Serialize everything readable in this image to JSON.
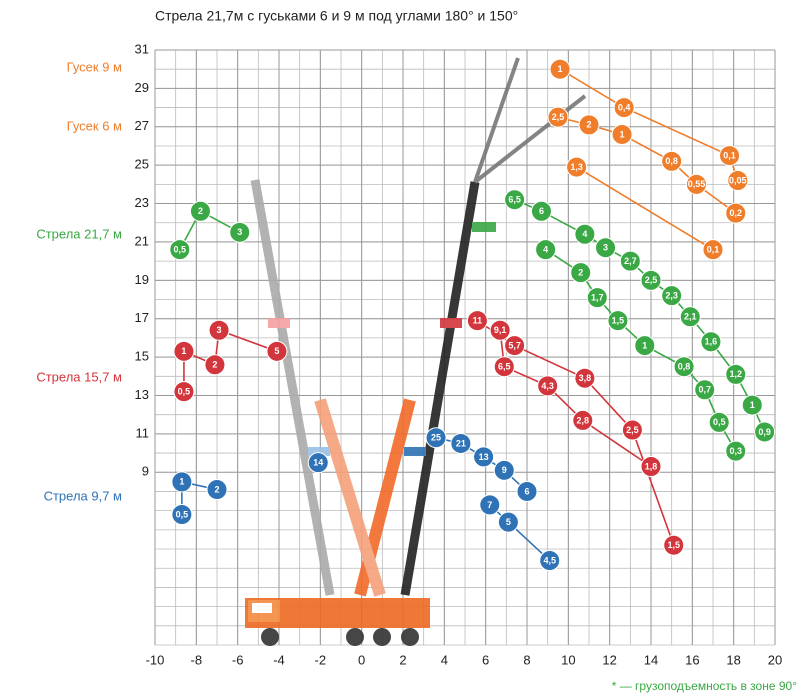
{
  "chart_data": {
    "type": "line",
    "title": "Стрела 21,7м с гуськами 6 и 9 м под углами 180° и 150°",
    "footnote": "* — грузоподъемность в зоне 90°",
    "xlim": [
      -10,
      20
    ],
    "ylim": [
      0,
      31
    ],
    "xticks": [
      -10,
      -8,
      -6,
      -4,
      -2,
      0,
      2,
      4,
      6,
      8,
      10,
      12,
      14,
      16,
      18,
      20
    ],
    "yticks": [
      9,
      11,
      13,
      15,
      17,
      19,
      21,
      23,
      25,
      27,
      29,
      31
    ],
    "grid": true,
    "series": [
      {
        "name": "Гусек 9 м",
        "color": "#f07d2a",
        "branches": [
          {
            "x": [
              9.6,
              12.7,
              17.8,
              18.2
            ],
            "y": [
              30.0,
              28.0,
              25.5,
              24.2
            ],
            "labels": [
              "1",
              "0,4",
              "0,1",
              "0,05"
            ]
          }
        ]
      },
      {
        "name": "Гусек 6 м",
        "color": "#f07d2a",
        "branches": [
          {
            "x": [
              9.5,
              11.0,
              12.6,
              15.0,
              16.2,
              18.1
            ],
            "y": [
              27.5,
              27.1,
              26.6,
              25.2,
              24.0,
              22.5
            ],
            "labels": [
              "2,5",
              "2",
              "1",
              "0,8",
              "0,55",
              "0,2"
            ]
          },
          {
            "x": [
              10.4,
              17.0
            ],
            "y": [
              24.9,
              20.6
            ],
            "labels": [
              "1,3",
              "0,1"
            ]
          }
        ]
      },
      {
        "name": "Стрела 21,7 м",
        "color": "#3aa845",
        "branches": [
          {
            "x": [
              -8.8,
              -7.8,
              -5.9
            ],
            "y": [
              20.6,
              22.6,
              21.5
            ],
            "labels": [
              "0,5",
              "2",
              "3"
            ]
          },
          {
            "x": [
              7.4,
              8.7,
              10.8,
              11.8,
              13.0,
              14.0,
              15.0,
              15.9,
              16.9,
              18.1,
              18.9,
              19.5
            ],
            "y": [
              23.2,
              22.6,
              21.4,
              20.7,
              20.0,
              19.0,
              18.2,
              17.1,
              15.8,
              14.1,
              12.5,
              11.1
            ],
            "labels": [
              "6,5",
              "6",
              "4",
              "3",
              "2,7",
              "2,5",
              "2,3",
              "2,1",
              "1,6",
              "1,2",
              "1",
              "0,9"
            ]
          },
          {
            "x": [
              8.9,
              10.6,
              11.4,
              12.4,
              13.7,
              15.6,
              16.6,
              17.3,
              18.1
            ],
            "y": [
              20.6,
              19.4,
              18.1,
              16.9,
              15.6,
              14.5,
              13.3,
              11.6,
              10.1
            ],
            "labels": [
              "4",
              "2",
              "1,7",
              "1,5",
              "1",
              "0,8",
              "0,7",
              "0,5",
              "0,3"
            ]
          }
        ]
      },
      {
        "name": "Стрела 15,7 м",
        "color": "#d2353b",
        "branches": [
          {
            "x": [
              -8.6,
              -8.6,
              -7.1,
              -6.9,
              -4.1
            ],
            "y": [
              13.2,
              15.3,
              14.6,
              16.4,
              15.3
            ],
            "labels": [
              "0,5",
              "1",
              "2",
              "3",
              "5"
            ]
          },
          {
            "x": [
              5.6,
              7.4,
              10.8,
              13.1,
              15.1
            ],
            "y": [
              16.9,
              15.6,
              13.9,
              11.2,
              5.2
            ],
            "labels": [
              "11",
              "5,7",
              "3,8",
              "2,5",
              "1,5"
            ]
          },
          {
            "x": [
              6.7,
              6.9,
              9.0,
              10.7,
              14.0
            ],
            "y": [
              16.4,
              14.5,
              13.5,
              11.7,
              9.3
            ],
            "labels": [
              "9,1",
              "6,5",
              "4,3",
              "2,8",
              "1,8"
            ]
          }
        ]
      },
      {
        "name": "Стрела 9,7 м",
        "color": "#2f72b5",
        "branches": [
          {
            "x": [
              -8.7,
              -8.7,
              -7.0
            ],
            "y": [
              6.8,
              8.5,
              8.1
            ],
            "labels": [
              "0,5",
              "1",
              "2"
            ]
          },
          {
            "x": [
              -2.1
            ],
            "y": [
              9.5
            ],
            "labels": [
              "14"
            ]
          },
          {
            "x": [
              3.6,
              4.8,
              5.9,
              6.9,
              8.0
            ],
            "y": [
              10.8,
              10.5,
              9.8,
              9.1,
              8.0
            ],
            "labels": [
              "25",
              "21",
              "13",
              "9",
              "6"
            ]
          },
          {
            "x": [
              6.2,
              7.1,
              9.1
            ],
            "y": [
              7.3,
              6.4,
              4.4
            ],
            "labels": [
              "7",
              "5",
              "4,5"
            ]
          }
        ]
      }
    ]
  }
}
